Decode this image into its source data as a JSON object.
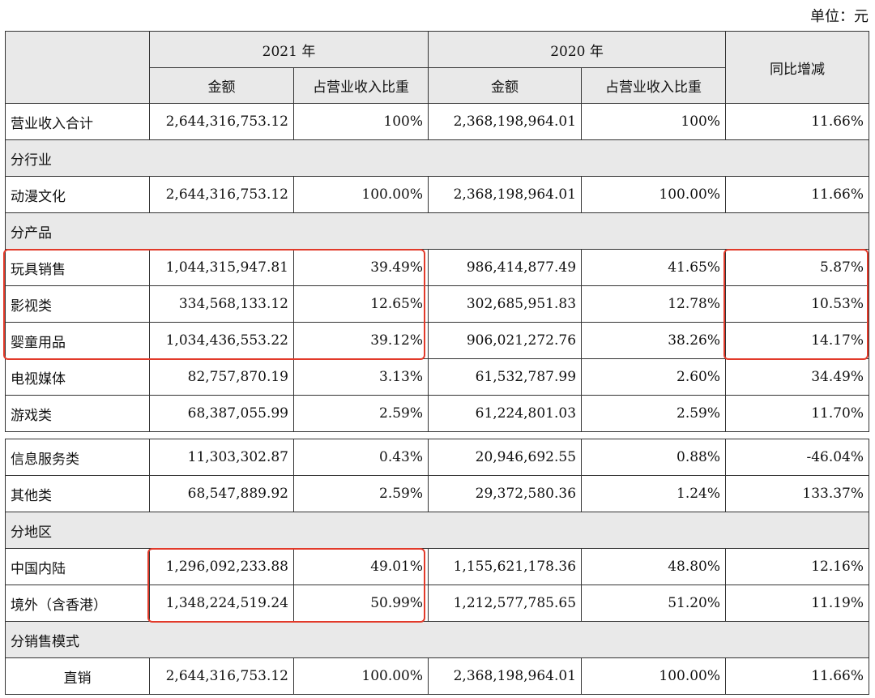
{
  "unit_label": "单位：元",
  "header": {
    "year_2021": "2021 年",
    "year_2020": "2020 年",
    "yoy": "同比增减",
    "amount": "金额",
    "ratio": "占营业收入比重"
  },
  "rows": {
    "total": {
      "label": "营业收入合计",
      "a2021": "2,644,316,753.12",
      "r2021": "100%",
      "a2020": "2,368,198,964.01",
      "r2020": "100%",
      "yoy": "11.66%"
    },
    "sec_industry": "分行业",
    "anime": {
      "label": "动漫文化",
      "a2021": "2,644,316,753.12",
      "r2021": "100.00%",
      "a2020": "2,368,198,964.01",
      "r2020": "100.00%",
      "yoy": "11.66%"
    },
    "sec_product": "分产品",
    "toys": {
      "label": "玩具销售",
      "a2021": "1,044,315,947.81",
      "r2021": "39.49%",
      "a2020": "986,414,877.49",
      "r2020": "41.65%",
      "yoy": "5.87%"
    },
    "film": {
      "label": "影视类",
      "a2021": "334,568,133.12",
      "r2021": "12.65%",
      "a2020": "302,685,951.83",
      "r2020": "12.78%",
      "yoy": "10.53%"
    },
    "baby": {
      "label": "婴童用品",
      "a2021": "1,034,436,553.22",
      "r2021": "39.12%",
      "a2020": "906,021,272.76",
      "r2020": "38.26%",
      "yoy": "14.17%"
    },
    "tv": {
      "label": "电视媒体",
      "a2021": "82,757,870.19",
      "r2021": "3.13%",
      "a2020": "61,532,787.99",
      "r2020": "2.60%",
      "yoy": "34.49%"
    },
    "game": {
      "label": "游戏类",
      "a2021": "68,387,055.99",
      "r2021": "2.59%",
      "a2020": "61,224,801.03",
      "r2020": "2.59%",
      "yoy": "11.70%"
    },
    "info": {
      "label": "信息服务类",
      "a2021": "11,303,302.87",
      "r2021": "0.43%",
      "a2020": "20,946,692.55",
      "r2020": "0.88%",
      "yoy": "-46.04%"
    },
    "other": {
      "label": "其他类",
      "a2021": "68,547,889.92",
      "r2021": "2.59%",
      "a2020": "29,372,580.36",
      "r2020": "1.24%",
      "yoy": "133.37%"
    },
    "sec_region": "分地区",
    "mainland": {
      "label": "中国内陆",
      "a2021": "1,296,092,233.88",
      "r2021": "49.01%",
      "a2020": "1,155,621,178.36",
      "r2020": "48.80%",
      "yoy": "12.16%"
    },
    "overseas": {
      "label": "境外（含香港）",
      "a2021": "1,348,224,519.24",
      "r2021": "50.99%",
      "a2020": "1,212,577,785.65",
      "r2020": "51.20%",
      "yoy": "11.19%"
    },
    "sec_sales": "分销售模式",
    "direct": {
      "label": "直销",
      "a2021": "2,644,316,753.12",
      "r2021": "100.00%",
      "a2020": "2,368,198,964.01",
      "r2020": "100.00%",
      "yoy": "11.66%"
    }
  },
  "highlight_color": "#e23a2a"
}
